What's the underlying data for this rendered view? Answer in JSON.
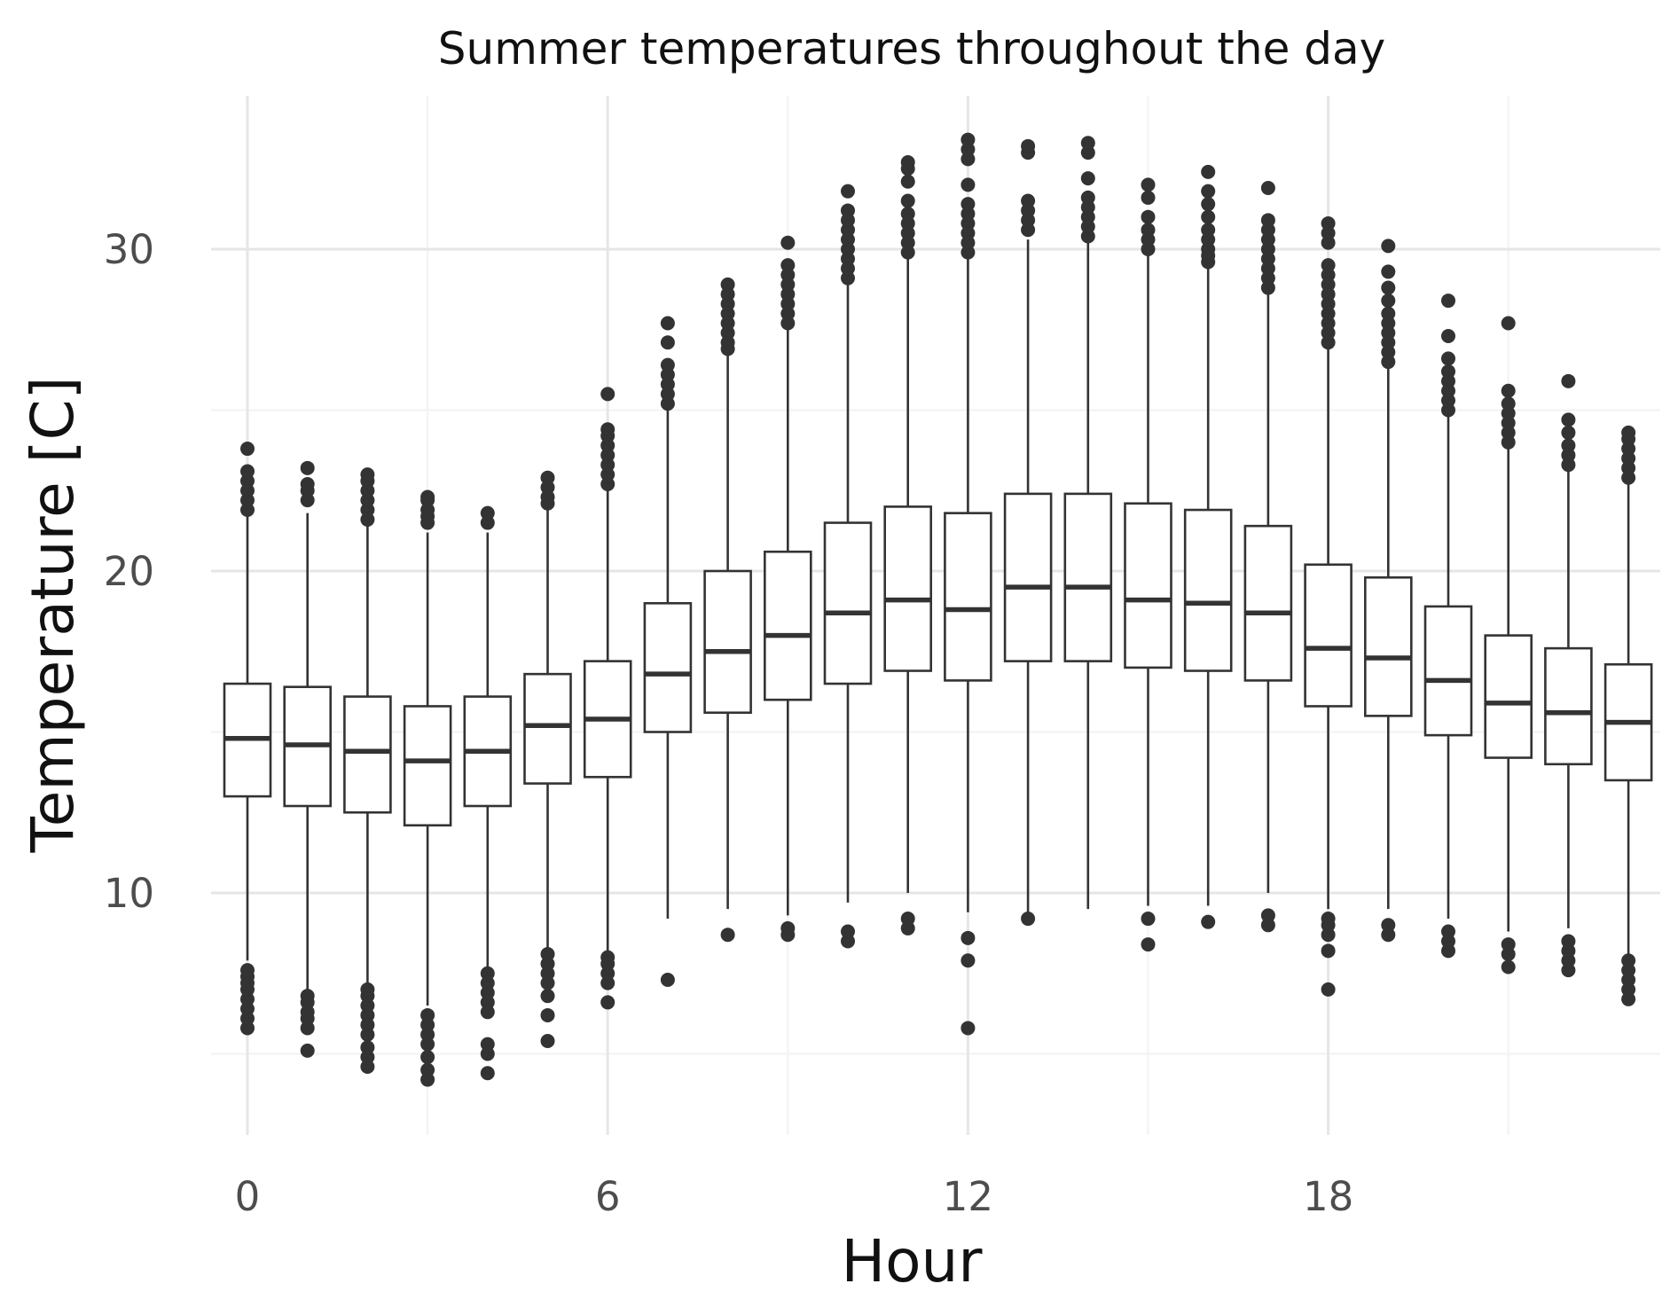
{
  "chart_data": {
    "type": "boxplot",
    "title": "Summer temperatures throughout the day",
    "xlabel": "Hour",
    "ylabel": "Temperature [C]",
    "xlim": [
      -0.5,
      23.5
    ],
    "ylim": [
      3.0,
      34.5
    ],
    "x_ticks": [
      0,
      6,
      12,
      18
    ],
    "y_ticks": [
      10,
      20,
      30
    ],
    "y_minor_ticks": [
      5,
      15,
      25
    ],
    "grid": true,
    "legend": "none",
    "series": [
      {
        "hour": 0,
        "whisker_low": 7.9,
        "q1": 13.0,
        "median": 14.8,
        "q3": 16.5,
        "whisker_high": 21.7,
        "outliers": [
          5.8,
          6.1,
          6.4,
          6.7,
          7.0,
          7.2,
          7.4,
          7.6,
          21.9,
          22.2,
          22.5,
          22.8,
          23.1,
          23.8
        ]
      },
      {
        "hour": 1,
        "whisker_low": 7.0,
        "q1": 12.7,
        "median": 14.6,
        "q3": 16.4,
        "whisker_high": 21.8,
        "outliers": [
          5.1,
          5.8,
          6.1,
          6.3,
          6.6,
          6.8,
          22.2,
          22.5,
          22.7,
          23.2
        ]
      },
      {
        "hour": 2,
        "whisker_low": 7.1,
        "q1": 12.5,
        "median": 14.4,
        "q3": 16.1,
        "whisker_high": 21.4,
        "outliers": [
          4.6,
          4.9,
          5.2,
          5.6,
          5.9,
          6.2,
          6.5,
          6.8,
          7.0,
          21.6,
          21.9,
          22.2,
          22.5,
          22.8,
          23.0
        ]
      },
      {
        "hour": 3,
        "whisker_low": 6.5,
        "q1": 12.1,
        "median": 14.1,
        "q3": 15.8,
        "whisker_high": 21.2,
        "outliers": [
          4.2,
          4.5,
          4.9,
          5.3,
          5.6,
          5.9,
          6.2,
          21.5,
          21.7,
          21.9,
          22.2,
          22.3
        ]
      },
      {
        "hour": 4,
        "whisker_low": 7.6,
        "q1": 12.7,
        "median": 14.4,
        "q3": 16.1,
        "whisker_high": 21.2,
        "outliers": [
          4.4,
          5.0,
          5.3,
          6.3,
          6.6,
          6.9,
          7.2,
          7.5,
          21.5,
          21.8
        ]
      },
      {
        "hour": 5,
        "whisker_low": 8.2,
        "q1": 13.4,
        "median": 15.2,
        "q3": 16.8,
        "whisker_high": 21.9,
        "outliers": [
          5.4,
          6.2,
          6.8,
          7.2,
          7.5,
          7.8,
          8.1,
          22.1,
          22.3,
          22.6,
          22.9
        ]
      },
      {
        "hour": 6,
        "whisker_low": 8.1,
        "q1": 13.6,
        "median": 15.4,
        "q3": 17.2,
        "whisker_high": 22.5,
        "outliers": [
          6.6,
          7.2,
          7.5,
          7.8,
          8.0,
          22.7,
          23.0,
          23.3,
          23.6,
          23.9,
          24.2,
          24.4,
          25.5
        ]
      },
      {
        "hour": 7,
        "whisker_low": 9.2,
        "q1": 15.0,
        "median": 16.8,
        "q3": 19.0,
        "whisker_high": 25.0,
        "outliers": [
          7.3,
          25.2,
          25.5,
          25.8,
          26.1,
          26.4,
          27.1,
          27.7
        ]
      },
      {
        "hour": 8,
        "whisker_low": 9.5,
        "q1": 15.6,
        "median": 17.5,
        "q3": 20.0,
        "whisker_high": 26.7,
        "outliers": [
          8.7,
          26.9,
          27.1,
          27.4,
          27.7,
          28.0,
          28.3,
          28.6,
          28.9
        ]
      },
      {
        "hour": 9,
        "whisker_low": 9.3,
        "q1": 16.0,
        "median": 18.0,
        "q3": 20.6,
        "whisker_high": 27.5,
        "outliers": [
          8.7,
          8.9,
          27.7,
          28.0,
          28.3,
          28.6,
          28.9,
          29.2,
          29.5,
          30.2
        ]
      },
      {
        "hour": 10,
        "whisker_low": 9.7,
        "q1": 16.5,
        "median": 18.7,
        "q3": 21.5,
        "whisker_high": 28.9,
        "outliers": [
          8.5,
          8.8,
          29.1,
          29.4,
          29.7,
          30.0,
          30.3,
          30.6,
          30.9,
          31.2,
          31.8
        ]
      },
      {
        "hour": 11,
        "whisker_low": 10.0,
        "q1": 16.9,
        "median": 19.1,
        "q3": 22.0,
        "whisker_high": 29.7,
        "outliers": [
          8.9,
          9.2,
          29.9,
          30.2,
          30.5,
          30.8,
          31.1,
          31.5,
          32.1,
          32.5,
          32.7
        ]
      },
      {
        "hour": 12,
        "whisker_low": 9.4,
        "q1": 16.6,
        "median": 18.8,
        "q3": 21.8,
        "whisker_high": 29.7,
        "outliers": [
          5.8,
          7.9,
          8.6,
          29.9,
          30.2,
          30.5,
          30.8,
          31.1,
          31.4,
          32.0,
          32.8,
          33.1,
          33.4
        ]
      },
      {
        "hour": 13,
        "whisker_low": 9.4,
        "q1": 17.2,
        "median": 19.5,
        "q3": 22.4,
        "whisker_high": 30.3,
        "outliers": [
          9.2,
          30.6,
          30.9,
          31.2,
          31.5,
          33.0,
          33.2
        ]
      },
      {
        "hour": 14,
        "whisker_low": 9.5,
        "q1": 17.2,
        "median": 19.5,
        "q3": 22.4,
        "whisker_high": 30.3,
        "outliers": [
          30.4,
          30.7,
          31.0,
          31.3,
          31.6,
          32.2,
          33.0,
          33.3
        ]
      },
      {
        "hour": 15,
        "whisker_low": 9.6,
        "q1": 17.0,
        "median": 19.1,
        "q3": 22.1,
        "whisker_high": 29.8,
        "outliers": [
          8.4,
          9.2,
          30.0,
          30.3,
          30.6,
          31.0,
          31.6,
          32.0
        ]
      },
      {
        "hour": 16,
        "whisker_low": 9.6,
        "q1": 16.9,
        "median": 19.0,
        "q3": 21.9,
        "whisker_high": 29.5,
        "outliers": [
          9.1,
          29.6,
          29.8,
          30.0,
          30.3,
          30.6,
          31.0,
          31.4,
          31.8,
          32.4
        ]
      },
      {
        "hour": 17,
        "whisker_low": 10.0,
        "q1": 16.6,
        "median": 18.7,
        "q3": 21.4,
        "whisker_high": 28.6,
        "outliers": [
          9.0,
          9.3,
          28.8,
          29.1,
          29.4,
          29.7,
          30.0,
          30.3,
          30.6,
          30.9,
          31.9
        ]
      },
      {
        "hour": 18,
        "whisker_low": 9.5,
        "q1": 15.8,
        "median": 17.6,
        "q3": 20.2,
        "whisker_high": 26.9,
        "outliers": [
          7.0,
          8.2,
          8.7,
          9.0,
          9.2,
          27.1,
          27.4,
          27.7,
          28.0,
          28.3,
          28.6,
          28.9,
          29.2,
          29.5,
          30.2,
          30.5,
          30.8
        ]
      },
      {
        "hour": 19,
        "whisker_low": 9.5,
        "q1": 15.5,
        "median": 17.3,
        "q3": 19.8,
        "whisker_high": 26.3,
        "outliers": [
          8.7,
          9.0,
          26.5,
          26.8,
          27.1,
          27.4,
          27.7,
          28.0,
          28.4,
          28.8,
          29.3,
          30.1
        ]
      },
      {
        "hour": 20,
        "whisker_low": 9.2,
        "q1": 14.9,
        "median": 16.6,
        "q3": 18.9,
        "whisker_high": 24.8,
        "outliers": [
          8.2,
          8.5,
          8.8,
          25.0,
          25.3,
          25.6,
          25.9,
          26.2,
          26.6,
          27.3,
          28.4
        ]
      },
      {
        "hour": 21,
        "whisker_low": 8.8,
        "q1": 14.2,
        "median": 15.9,
        "q3": 18.0,
        "whisker_high": 23.8,
        "outliers": [
          7.7,
          8.1,
          8.4,
          24.0,
          24.3,
          24.6,
          24.9,
          25.2,
          25.6,
          27.7
        ]
      },
      {
        "hour": 22,
        "whisker_low": 8.9,
        "q1": 14.0,
        "median": 15.6,
        "q3": 17.6,
        "whisker_high": 23.1,
        "outliers": [
          7.6,
          7.9,
          8.2,
          8.5,
          23.3,
          23.6,
          23.9,
          24.3,
          24.7,
          25.9
        ]
      },
      {
        "hour": 23,
        "whisker_low": 8.1,
        "q1": 13.5,
        "median": 15.3,
        "q3": 17.1,
        "whisker_high": 22.7,
        "outliers": [
          6.7,
          7.0,
          7.3,
          7.6,
          7.9,
          22.9,
          23.2,
          23.5,
          23.8,
          24.1,
          24.3
        ]
      }
    ]
  }
}
